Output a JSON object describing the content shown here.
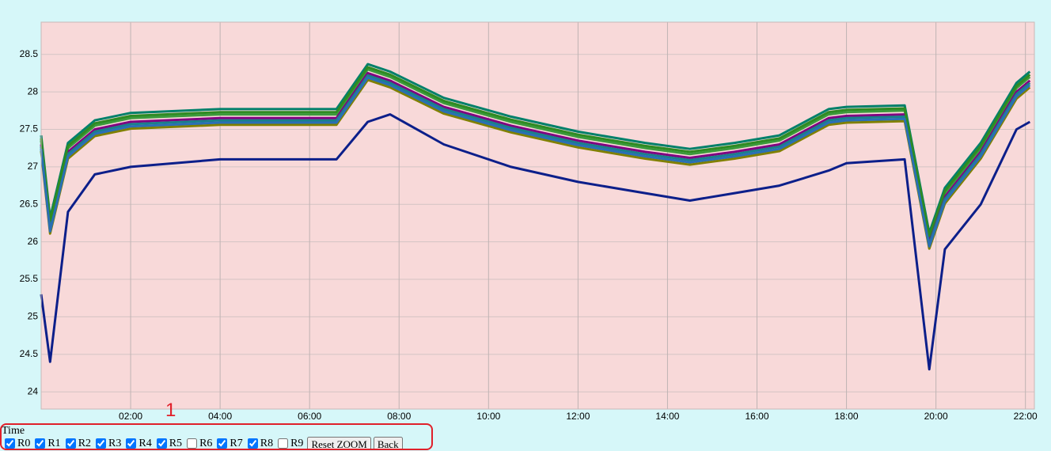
{
  "chart_data": {
    "type": "line",
    "x_label": "Time",
    "annotation": "1",
    "buttons": [
      "Reset ZOOM",
      "Back"
    ],
    "x": [
      0,
      0.2,
      0.6,
      1.2,
      2,
      4,
      6.6,
      7.3,
      7.8,
      9,
      10.5,
      12,
      13.5,
      14.5,
      15.5,
      16.5,
      17.6,
      18,
      19.3,
      19.85,
      20.2,
      21,
      21.8,
      22.1
    ],
    "xlim": [
      0,
      22.2
    ],
    "xticks": [
      {
        "value": 2,
        "label": "02:00"
      },
      {
        "value": 4,
        "label": "04:00"
      },
      {
        "value": 6,
        "label": "06:00"
      },
      {
        "value": 8,
        "label": "08:00"
      },
      {
        "value": 10,
        "label": "10:00"
      },
      {
        "value": 12,
        "label": "12:00"
      },
      {
        "value": 14,
        "label": "14:00"
      },
      {
        "value": 16,
        "label": "16:00"
      },
      {
        "value": 18,
        "label": "18:00"
      },
      {
        "value": 20,
        "label": "20:00"
      },
      {
        "value": 22,
        "label": "22:00"
      }
    ],
    "ylim": [
      23.77,
      28.93
    ],
    "yticks": [
      24,
      24.5,
      25,
      25.5,
      26,
      26.5,
      27,
      27.5,
      28,
      28.5
    ],
    "grid": true,
    "series": [
      {
        "name": "R0",
        "checked": true,
        "color": "#0c1f8a",
        "values": [
          25.3,
          24.4,
          26.4,
          26.9,
          27.0,
          27.1,
          27.1,
          27.6,
          27.7,
          27.3,
          27.0,
          26.8,
          26.65,
          26.55,
          26.65,
          26.75,
          26.95,
          27.05,
          27.1,
          24.3,
          25.9,
          26.5,
          27.5,
          27.6
        ]
      },
      {
        "name": "R1",
        "checked": true,
        "color": "#2a6fb5",
        "values": [
          27.24,
          26.14,
          27.14,
          27.44,
          27.54,
          27.59,
          27.59,
          28.19,
          28.09,
          27.74,
          27.49,
          27.29,
          27.14,
          27.06,
          27.14,
          27.24,
          27.59,
          27.62,
          27.64,
          25.94,
          26.54,
          27.14,
          27.94,
          28.09
        ]
      },
      {
        "name": "R2",
        "checked": true,
        "color": "#2e8b22",
        "values": [
          27.38,
          26.28,
          27.28,
          27.58,
          27.68,
          27.73,
          27.73,
          28.33,
          28.23,
          27.88,
          27.63,
          27.43,
          27.28,
          27.2,
          27.28,
          27.38,
          27.73,
          27.76,
          27.78,
          26.08,
          26.68,
          27.28,
          28.08,
          28.23
        ]
      },
      {
        "name": "R3",
        "checked": true,
        "color": "#1a7f8a",
        "values": [
          27.27,
          26.17,
          27.17,
          27.47,
          27.57,
          27.62,
          27.62,
          28.22,
          28.12,
          27.77,
          27.52,
          27.32,
          27.17,
          27.09,
          27.17,
          27.27,
          27.62,
          27.65,
          27.67,
          25.97,
          26.57,
          27.17,
          27.97,
          28.12
        ]
      },
      {
        "name": "R4",
        "checked": true,
        "color": "#808000",
        "values": [
          27.21,
          26.11,
          27.11,
          27.41,
          27.51,
          27.56,
          27.56,
          28.16,
          28.06,
          27.71,
          27.46,
          27.26,
          27.11,
          27.03,
          27.11,
          27.21,
          27.56,
          27.59,
          27.61,
          25.91,
          26.51,
          27.11,
          27.91,
          28.06
        ]
      },
      {
        "name": "R5",
        "checked": true,
        "color": "#800080",
        "values": [
          27.3,
          26.2,
          27.2,
          27.5,
          27.6,
          27.65,
          27.65,
          28.25,
          28.15,
          27.8,
          27.55,
          27.35,
          27.2,
          27.12,
          27.2,
          27.3,
          27.65,
          27.68,
          27.7,
          26.0,
          26.6,
          27.2,
          28.0,
          28.15
        ]
      },
      {
        "name": "R6",
        "checked": false
      },
      {
        "name": "R7",
        "checked": true,
        "color": "#3c9a3c",
        "values": [
          27.35,
          26.25,
          27.25,
          27.55,
          27.65,
          27.7,
          27.7,
          28.3,
          28.2,
          27.85,
          27.6,
          27.4,
          27.25,
          27.17,
          27.25,
          27.35,
          27.7,
          27.73,
          27.75,
          26.05,
          26.65,
          27.25,
          28.05,
          28.2
        ]
      },
      {
        "name": "R8",
        "checked": true,
        "color": "#00806a",
        "values": [
          27.42,
          26.32,
          27.32,
          27.62,
          27.72,
          27.77,
          27.77,
          28.37,
          28.27,
          27.92,
          27.67,
          27.47,
          27.32,
          27.24,
          27.32,
          27.42,
          27.77,
          27.8,
          27.82,
          26.12,
          26.72,
          27.32,
          28.12,
          28.27
        ]
      },
      {
        "name": "R9",
        "checked": false
      }
    ]
  }
}
